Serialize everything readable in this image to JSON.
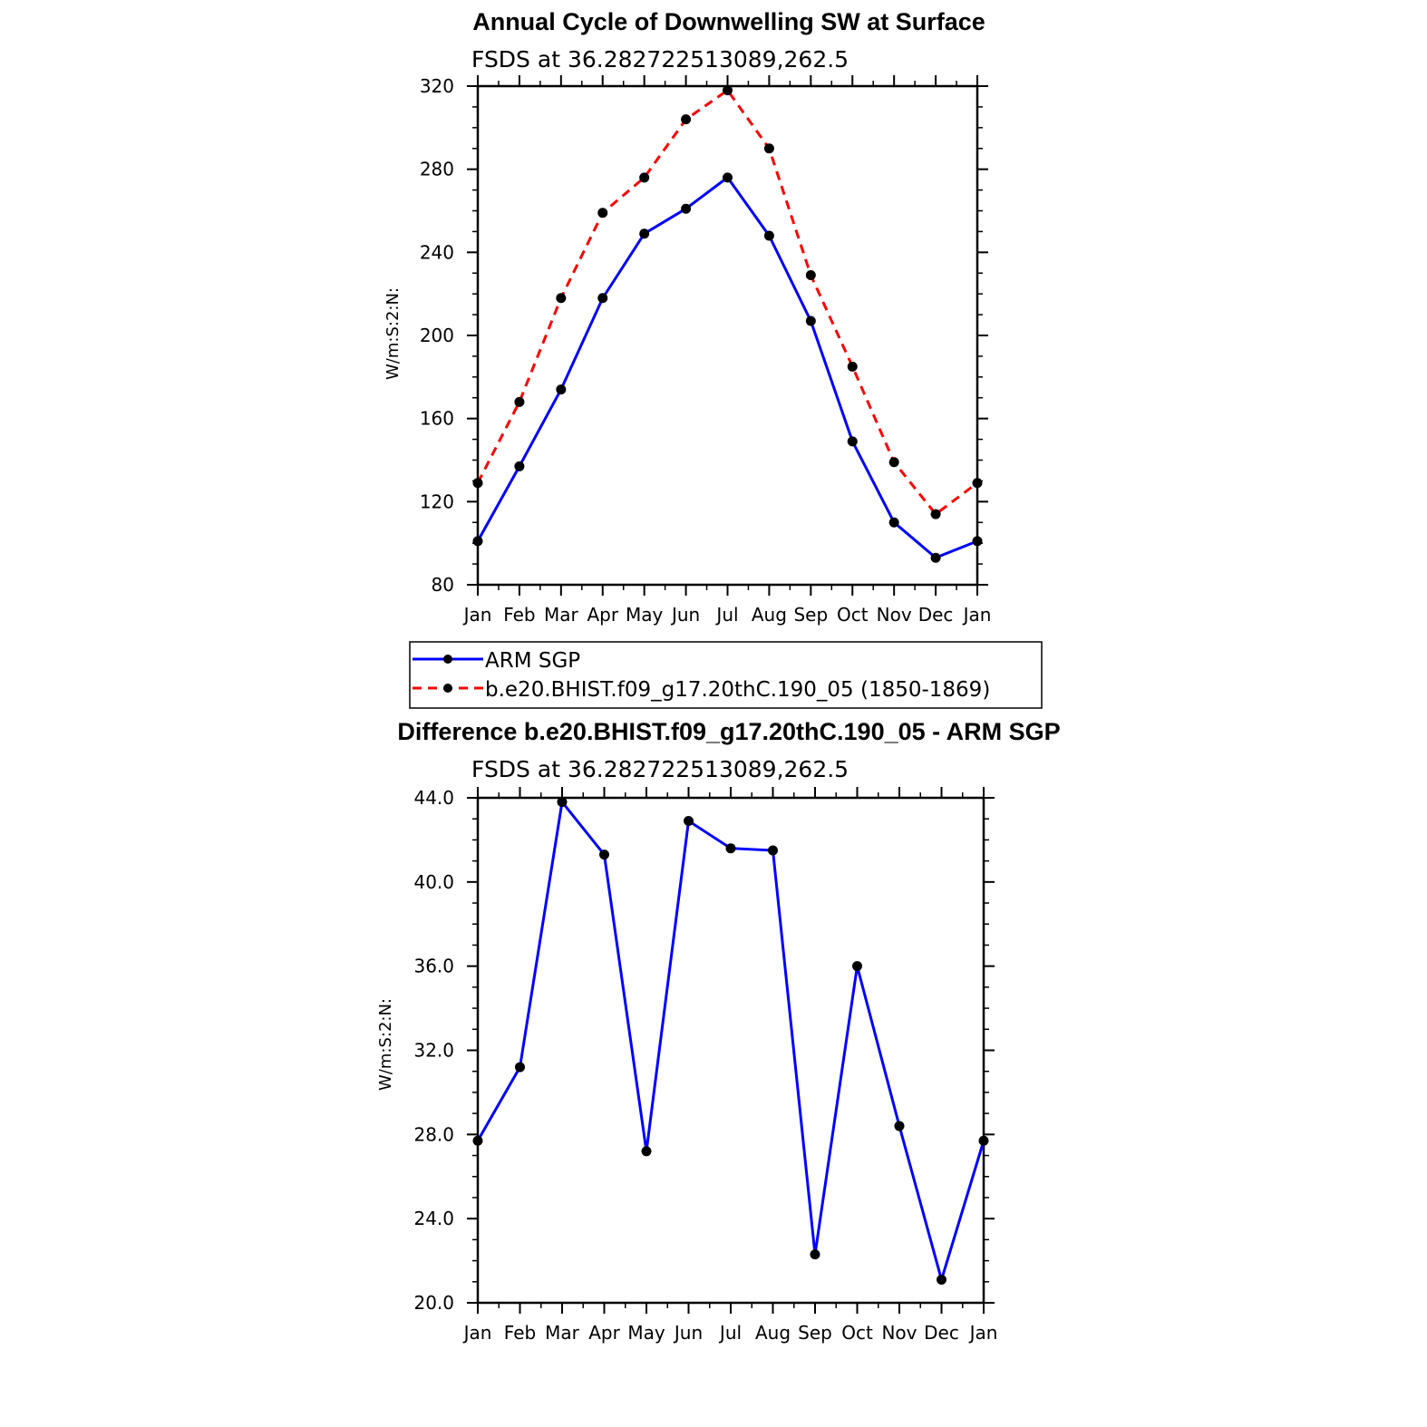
{
  "chart_data": [
    {
      "type": "line",
      "title": "Annual Cycle of Downwelling SW at Surface",
      "subtitle": "FSDS at 36.282722513089,262.5",
      "ylabel": "W/m:S:2:N:",
      "xlabel": "",
      "categories": [
        "Jan",
        "Feb",
        "Mar",
        "Apr",
        "May",
        "Jun",
        "Jul",
        "Aug",
        "Sep",
        "Oct",
        "Nov",
        "Dec",
        "Jan"
      ],
      "ylim": [
        80,
        320
      ],
      "yticks": [
        "80",
        "120",
        "160",
        "200",
        "240",
        "280",
        "320"
      ],
      "series": [
        {
          "name": "ARM SGP",
          "color": "#0000ff",
          "dash": "solid",
          "values": [
            101,
            137,
            174,
            218,
            249,
            261,
            276,
            248,
            207,
            149,
            110,
            93,
            101
          ]
        },
        {
          "name": "b.e20.BHIST.f09_g17.20thC.190_05 (1850-1869)",
          "color": "#ff0000",
          "dash": "dashed",
          "values": [
            129,
            168,
            218,
            259,
            276,
            304,
            318,
            290,
            229,
            185,
            139,
            114,
            129
          ]
        }
      ],
      "legend": "bottom"
    },
    {
      "type": "line",
      "title": "Difference b.e20.BHIST.f09_g17.20thC.190_05 - ARM SGP",
      "subtitle": "FSDS at 36.282722513089,262.5",
      "ylabel": "W/m:S:2:N:",
      "xlabel": "",
      "categories": [
        "Jan",
        "Feb",
        "Mar",
        "Apr",
        "May",
        "Jun",
        "Jul",
        "Aug",
        "Sep",
        "Oct",
        "Nov",
        "Dec",
        "Jan"
      ],
      "ylim": [
        20,
        44
      ],
      "yticks": [
        "20.0",
        "24.0",
        "28.0",
        "32.0",
        "36.0",
        "40.0",
        "44.0"
      ],
      "series": [
        {
          "color": "#0000ff",
          "dash": "solid",
          "values": [
            27.7,
            31.2,
            43.8,
            41.3,
            27.2,
            42.9,
            41.6,
            41.5,
            22.3,
            36.0,
            28.4,
            21.1,
            27.7
          ]
        }
      ]
    }
  ]
}
